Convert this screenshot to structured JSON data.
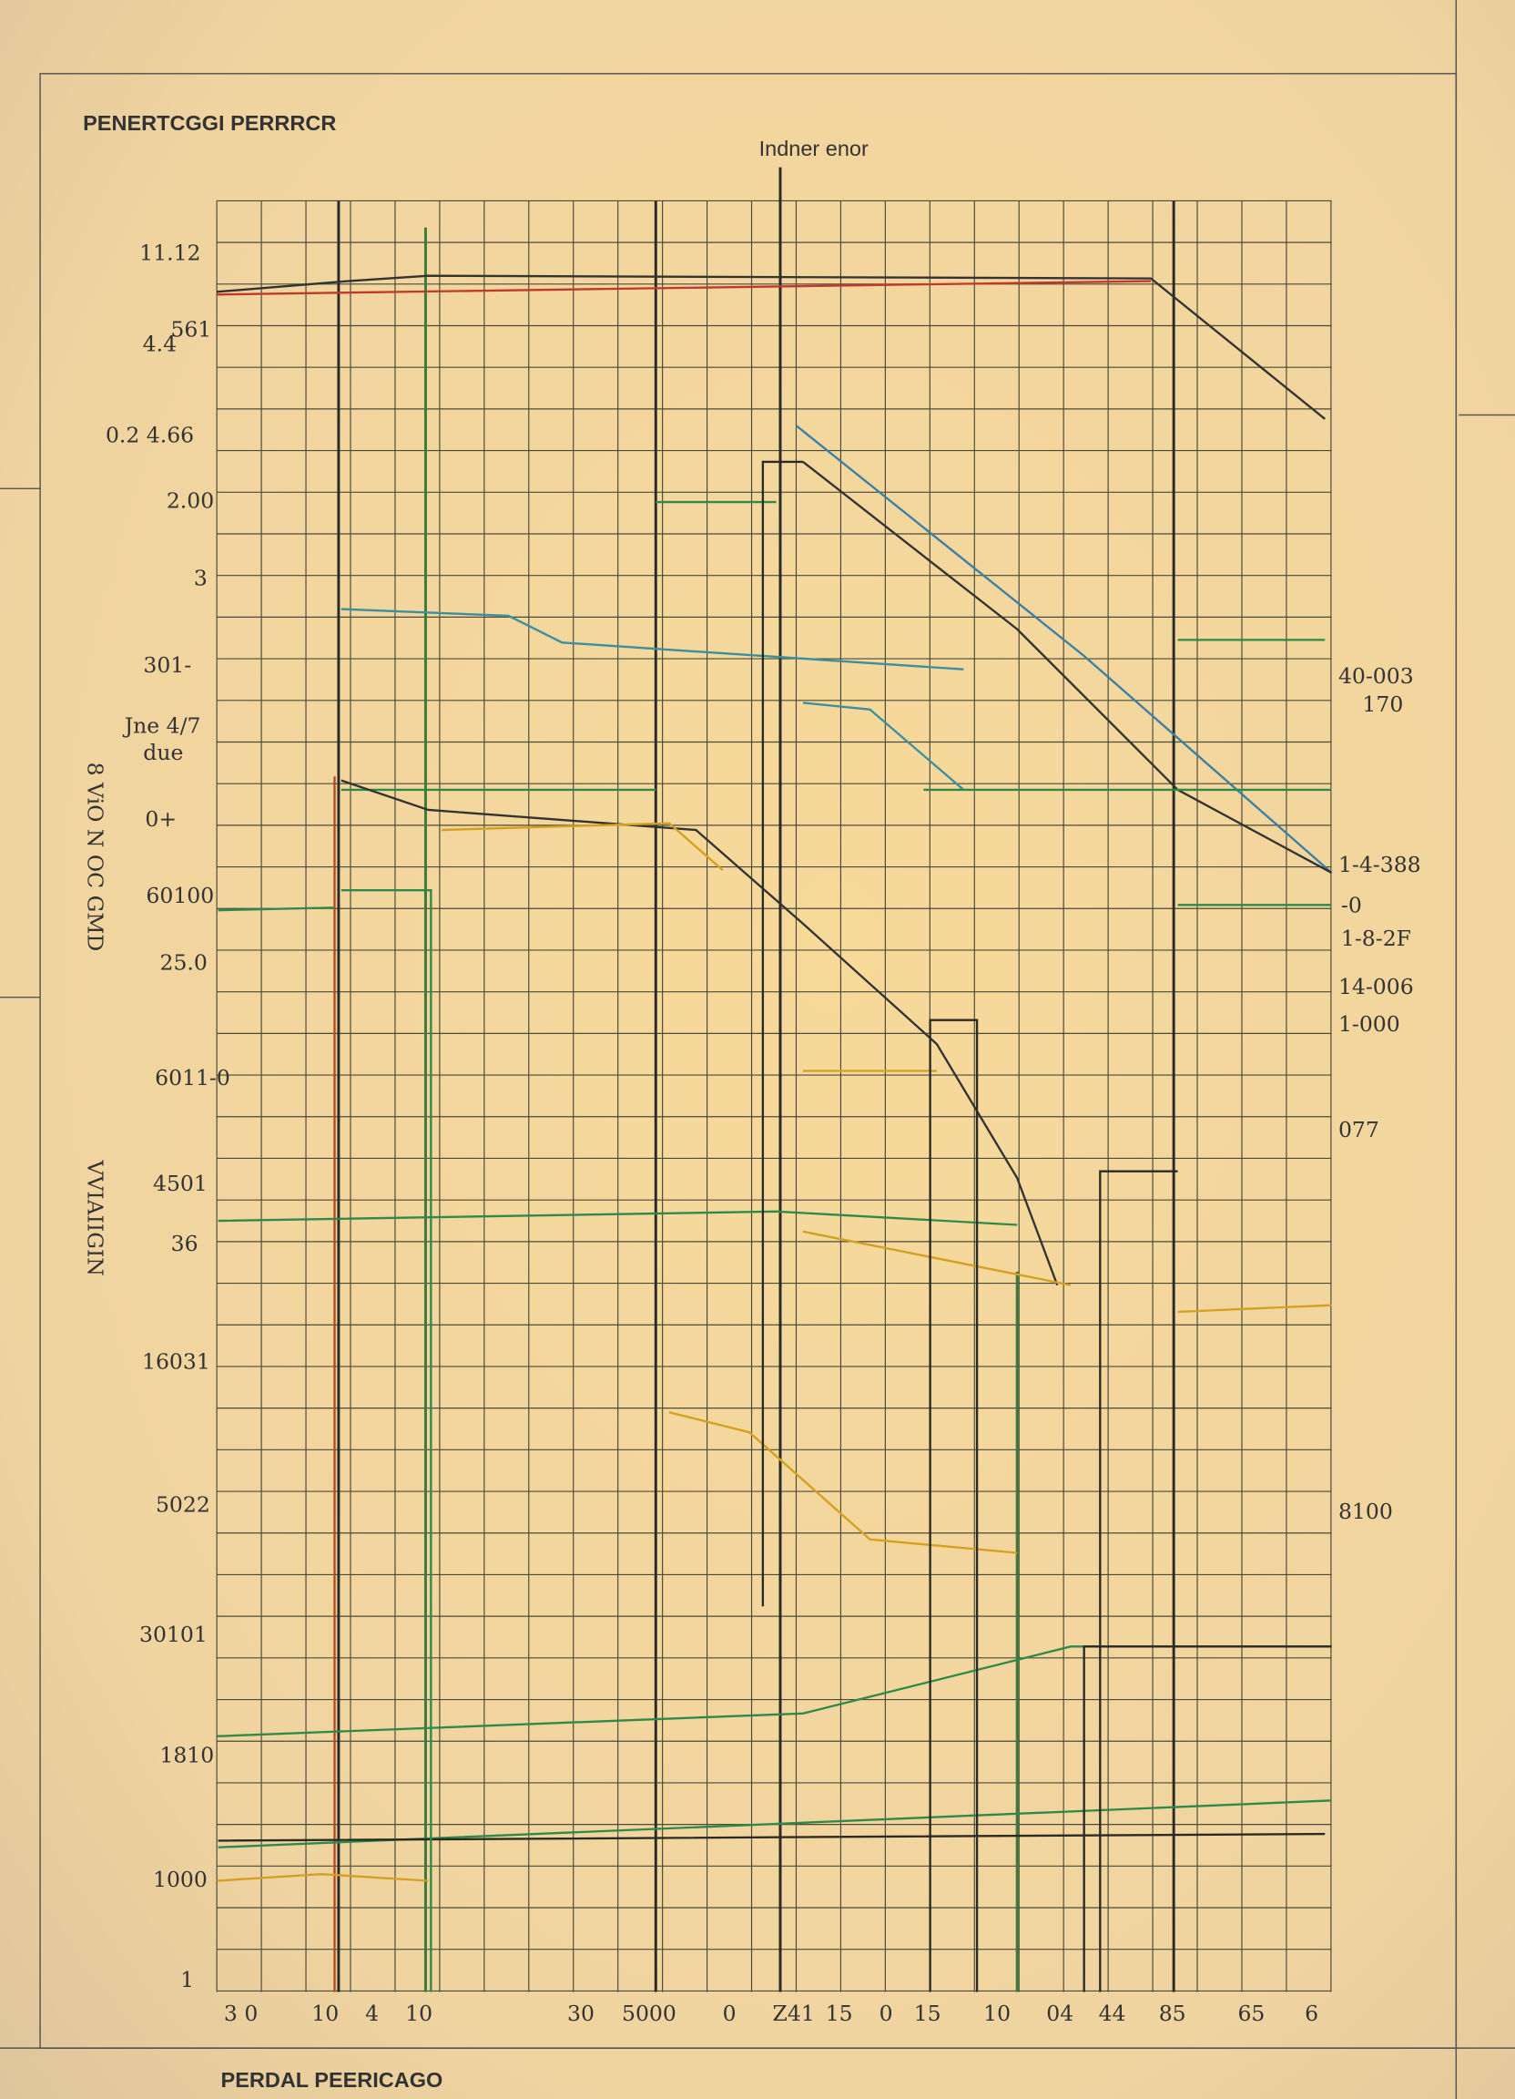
{
  "header": {
    "title": "PENERTCGGI PERRRCR",
    "annotation": "Indner enor"
  },
  "axis_labels": [
    "8 ViO N OC GMD",
    "VVIAIIGIN"
  ],
  "left_labels": [
    "11.12",
    "4.4",
    "561",
    "0.2 4.66",
    "2.00",
    "3",
    "301-",
    "Jne 4/7",
    "due",
    "0+",
    "60100",
    "25.0",
    "6011-0",
    "4501",
    "36",
    "16031",
    "5022",
    "30101",
    "1810",
    "1000",
    "1"
  ],
  "right_labels": [
    "40-003",
    "170",
    "1-4-388",
    "-0",
    "1-8-2F",
    "14-006",
    "1-000",
    "077",
    "8100"
  ],
  "bottom_labels": [
    "3 0",
    "10",
    "4",
    "10",
    "30",
    "5000",
    "0",
    "Z41",
    "15",
    "0",
    "15",
    "10",
    "04",
    "44",
    "85",
    "65",
    "6"
  ],
  "footer": "PERDAL PEERICAGO"
}
